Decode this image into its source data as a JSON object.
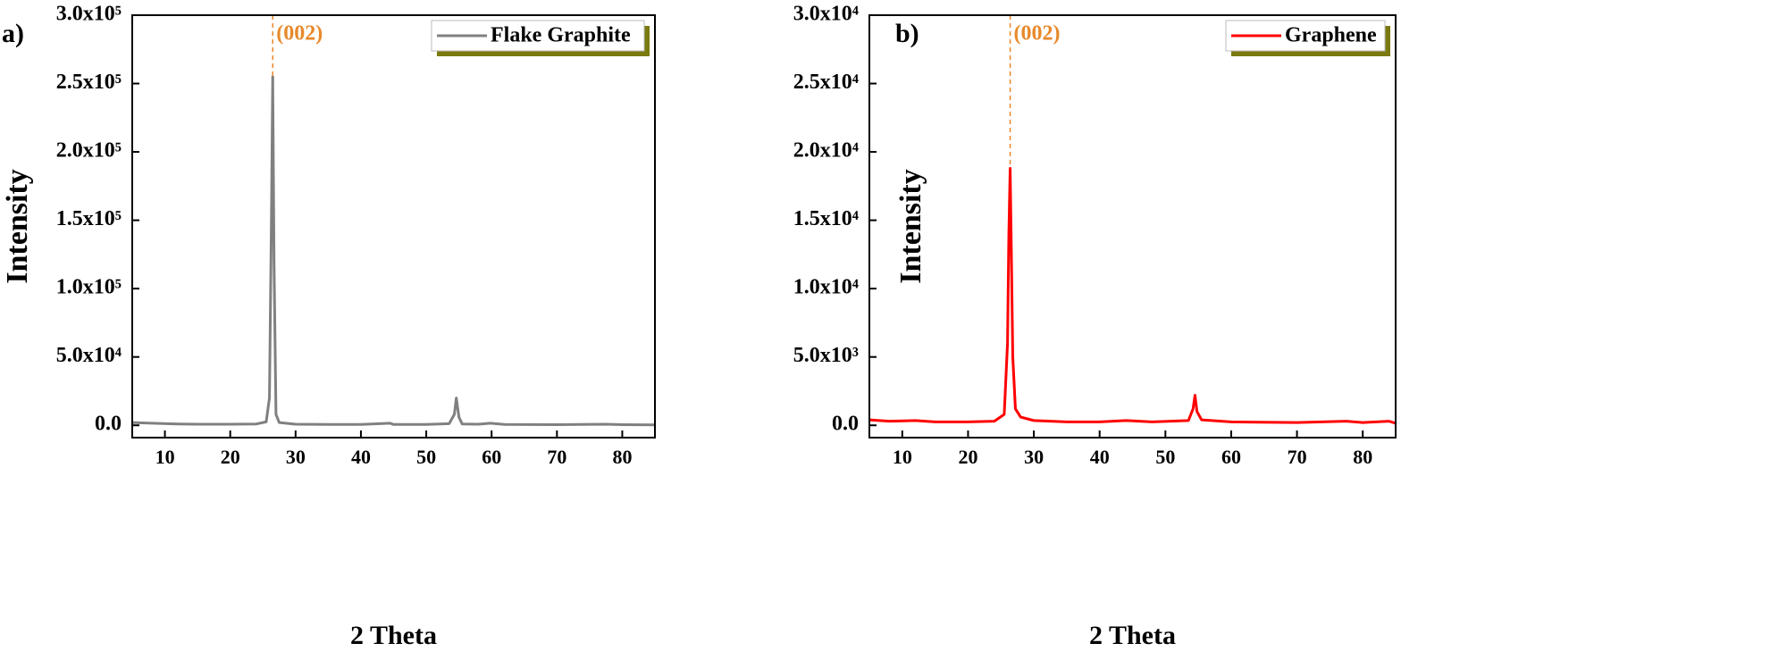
{
  "chart_data": [
    {
      "type": "line",
      "panel_label": "a)",
      "xlabel": "2 Theta",
      "ylabel": "Intensity",
      "x": [
        5,
        8,
        12,
        15,
        20,
        24,
        25.5,
        26,
        26.3,
        26.5,
        26.7,
        27,
        27.5,
        30,
        35,
        40,
        44.5,
        45,
        50,
        53.5,
        54.3,
        54.6,
        55,
        55.5,
        58,
        59.8,
        62,
        70,
        77.5,
        80,
        85
      ],
      "series": [
        {
          "name": "Flake Graphite",
          "color": "#808080",
          "values": [
            2000,
            1500,
            1000,
            800,
            800,
            1000,
            2500,
            20000,
            150000,
            255000,
            120000,
            8000,
            2000,
            800,
            600,
            600,
            1500,
            600,
            600,
            1200,
            8000,
            20000,
            6000,
            1000,
            800,
            1500,
            600,
            500,
            800,
            500,
            300
          ]
        }
      ],
      "xlim": [
        5,
        85
      ],
      "ylim": [
        -9000,
        300000
      ],
      "xticks": [
        10,
        20,
        30,
        40,
        50,
        60,
        70,
        80
      ],
      "yticks": [
        {
          "value": 0,
          "label": "0.0"
        },
        {
          "value": 50000,
          "label": "5.0x10⁴"
        },
        {
          "value": 100000,
          "label": "1.0x10⁵"
        },
        {
          "value": 150000,
          "label": "1.5x10⁵"
        },
        {
          "value": 200000,
          "label": "2.0x10⁵"
        },
        {
          "value": 250000,
          "label": "2.5x10⁵"
        },
        {
          "value": 300000,
          "label": "3.0x10⁵"
        }
      ],
      "annotation": {
        "text": "(002)",
        "x": 26.5,
        "color": "#e8892b"
      },
      "legend": "upper right"
    },
    {
      "type": "line",
      "panel_label": "b)",
      "xlabel": "2 Theta",
      "ylabel": "Intensity",
      "x": [
        5,
        8,
        12,
        15,
        20,
        24,
        25.5,
        26,
        26.2,
        26.4,
        26.6,
        26.8,
        27.2,
        28,
        30,
        35,
        40,
        44,
        48,
        53.5,
        54.2,
        54.5,
        54.8,
        55.5,
        60,
        70,
        77.5,
        80,
        84,
        85
      ],
      "series": [
        {
          "name": "Graphene",
          "color": "#ff0000",
          "values": [
            400,
            300,
            350,
            250,
            250,
            300,
            800,
            6000,
            14000,
            18800,
            12000,
            5000,
            1200,
            600,
            350,
            250,
            250,
            350,
            250,
            350,
            1200,
            2200,
            1000,
            400,
            250,
            200,
            300,
            200,
            300,
            150
          ]
        }
      ],
      "xlim": [
        5,
        85
      ],
      "ylim": [
        -900,
        30000
      ],
      "xticks": [
        10,
        20,
        30,
        40,
        50,
        60,
        70,
        80
      ],
      "yticks": [
        {
          "value": 0,
          "label": "0.0"
        },
        {
          "value": 5000,
          "label": "5.0x10³"
        },
        {
          "value": 10000,
          "label": "1.0x10⁴"
        },
        {
          "value": 15000,
          "label": "1.5x10⁴"
        },
        {
          "value": 20000,
          "label": "2.0x10⁴"
        },
        {
          "value": 25000,
          "label": "2.5x10⁴"
        },
        {
          "value": 30000,
          "label": "3.0x10⁴"
        }
      ],
      "annotation": {
        "text": "(002)",
        "x": 26.4,
        "color": "#e8892b"
      },
      "legend": "upper right"
    }
  ]
}
